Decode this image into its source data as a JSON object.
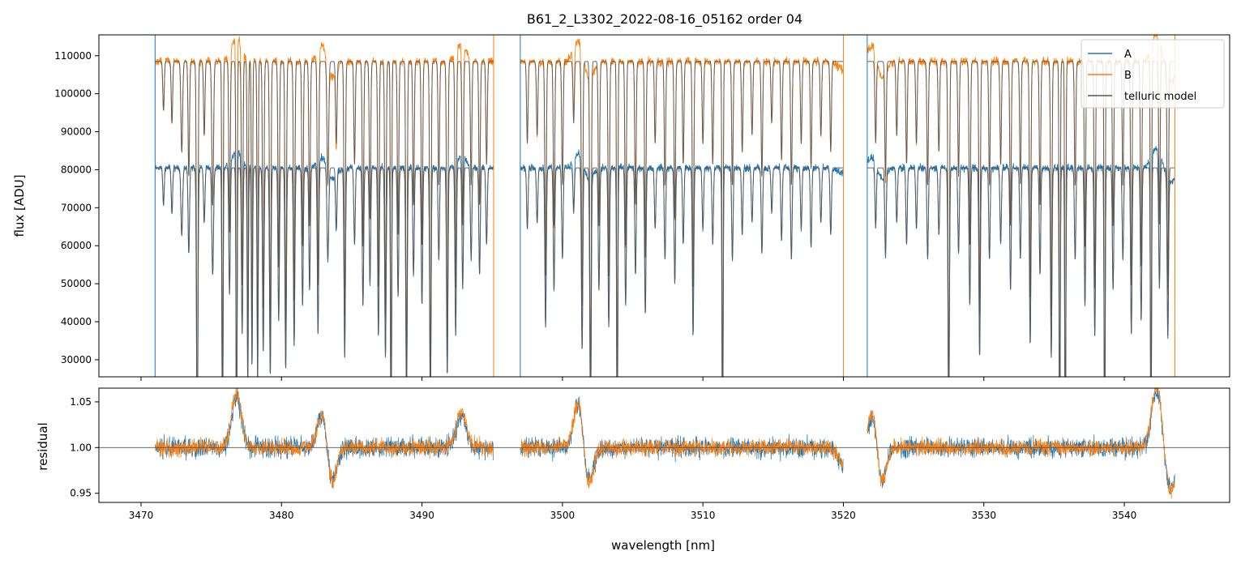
{
  "chart_data": [
    {
      "type": "line",
      "title": "B61_2_L3302_2022-08-16_05162  order 04",
      "xlabel": "",
      "ylabel": "flux [ADU]",
      "xlim": [
        3467,
        3547.5
      ],
      "ylim": [
        25500,
        115500
      ],
      "yticks": [
        30000,
        40000,
        50000,
        60000,
        70000,
        80000,
        90000,
        100000,
        110000
      ],
      "ytick_labels": [
        "30000",
        "40000",
        "50000",
        "60000",
        "70000",
        "80000",
        "90000",
        "100000",
        "110000"
      ],
      "legend_position": "top-right",
      "legend": [
        {
          "label": "A",
          "color": "#1f77b4"
        },
        {
          "label": "B",
          "color": "#ff7f0e"
        },
        {
          "label": "telluric model",
          "color": "#555555"
        }
      ],
      "segments": [
        [
          3471.0,
          3495.1
        ],
        [
          3497.0,
          3520.0
        ],
        [
          3521.7,
          3543.6
        ]
      ],
      "series": [
        {
          "name": "A",
          "color": "#1f77b4",
          "continuum": 80500
        },
        {
          "name": "B",
          "color": "#ff7f0e",
          "continuum": 108500
        },
        {
          "name": "telluric model",
          "color": "#555555"
        }
      ],
      "absorption_lines": [
        [
          3471.6,
          0.12,
          0.05
        ],
        [
          3472.2,
          0.15,
          0.05
        ],
        [
          3472.9,
          0.22,
          0.06
        ],
        [
          3473.4,
          0.28,
          0.05
        ],
        [
          3474.0,
          0.96,
          0.05
        ],
        [
          3474.5,
          0.18,
          0.05
        ],
        [
          3475.1,
          0.35,
          0.06
        ],
        [
          3475.8,
          0.97,
          0.04
        ],
        [
          3476.3,
          0.42,
          0.05
        ],
        [
          3476.8,
          0.98,
          0.04
        ],
        [
          3477.2,
          0.55,
          0.05
        ],
        [
          3477.6,
          0.72,
          0.04
        ],
        [
          3477.9,
          0.65,
          0.04
        ],
        [
          3478.3,
          0.7,
          0.04
        ],
        [
          3478.7,
          0.6,
          0.05
        ],
        [
          3479.2,
          0.68,
          0.05
        ],
        [
          3479.8,
          0.5,
          0.05
        ],
        [
          3480.3,
          0.66,
          0.05
        ],
        [
          3480.9,
          0.58,
          0.05
        ],
        [
          3481.5,
          0.45,
          0.05
        ],
        [
          3482.0,
          0.4,
          0.05
        ],
        [
          3482.6,
          0.55,
          0.05
        ],
        [
          3483.3,
          0.3,
          0.06
        ],
        [
          3483.9,
          0.2,
          0.05
        ],
        [
          3484.5,
          0.62,
          0.05
        ],
        [
          3485.2,
          0.25,
          0.05
        ],
        [
          3485.8,
          0.45,
          0.05
        ],
        [
          3486.3,
          0.38,
          0.05
        ],
        [
          3486.9,
          0.55,
          0.05
        ],
        [
          3487.4,
          0.62,
          0.05
        ],
        [
          3487.8,
          0.97,
          0.04
        ],
        [
          3488.3,
          0.42,
          0.05
        ],
        [
          3488.9,
          0.78,
          0.05
        ],
        [
          3489.4,
          0.35,
          0.05
        ],
        [
          3490.0,
          0.45,
          0.05
        ],
        [
          3490.6,
          0.8,
          0.05
        ],
        [
          3491.2,
          0.3,
          0.05
        ],
        [
          3491.8,
          0.68,
          0.05
        ],
        [
          3492.4,
          0.55,
          0.05
        ],
        [
          3492.9,
          0.4,
          0.05
        ],
        [
          3493.5,
          0.3,
          0.05
        ],
        [
          3494.1,
          0.35,
          0.05
        ],
        [
          3494.6,
          0.25,
          0.05
        ],
        [
          3497.5,
          0.2,
          0.05
        ],
        [
          3498.2,
          0.18,
          0.05
        ],
        [
          3498.8,
          0.52,
          0.05
        ],
        [
          3499.4,
          0.4,
          0.05
        ],
        [
          3500.0,
          0.3,
          0.05
        ],
        [
          3500.8,
          0.15,
          0.05
        ],
        [
          3501.4,
          0.6,
          0.05
        ],
        [
          3502.0,
          0.85,
          0.05
        ],
        [
          3502.6,
          0.4,
          0.05
        ],
        [
          3503.3,
          0.52,
          0.05
        ],
        [
          3503.9,
          0.98,
          0.04
        ],
        [
          3504.5,
          0.45,
          0.05
        ],
        [
          3505.2,
          0.35,
          0.05
        ],
        [
          3505.9,
          0.48,
          0.05
        ],
        [
          3506.6,
          0.2,
          0.05
        ],
        [
          3507.3,
          0.3,
          0.05
        ],
        [
          3508.0,
          0.38,
          0.05
        ],
        [
          3508.6,
          0.25,
          0.05
        ],
        [
          3509.3,
          0.55,
          0.05
        ],
        [
          3510.0,
          0.2,
          0.05
        ],
        [
          3510.7,
          0.25,
          0.05
        ],
        [
          3511.4,
          0.98,
          0.04
        ],
        [
          3512.1,
          0.3,
          0.05
        ],
        [
          3512.8,
          0.22,
          0.05
        ],
        [
          3513.5,
          0.18,
          0.05
        ],
        [
          3514.2,
          0.28,
          0.05
        ],
        [
          3514.9,
          0.15,
          0.05
        ],
        [
          3515.6,
          0.24,
          0.05
        ],
        [
          3516.3,
          0.3,
          0.05
        ],
        [
          3517.0,
          0.2,
          0.05
        ],
        [
          3517.7,
          0.26,
          0.05
        ],
        [
          3518.4,
          0.18,
          0.05
        ],
        [
          3519.1,
          0.22,
          0.05
        ],
        [
          3522.3,
          0.2,
          0.05
        ],
        [
          3523.0,
          0.28,
          0.05
        ],
        [
          3523.8,
          0.18,
          0.05
        ],
        [
          3524.5,
          0.25,
          0.05
        ],
        [
          3525.2,
          0.2,
          0.05
        ],
        [
          3526.0,
          0.3,
          0.05
        ],
        [
          3526.8,
          0.22,
          0.05
        ],
        [
          3527.5,
          0.85,
          0.05
        ],
        [
          3528.2,
          0.28,
          0.05
        ],
        [
          3529.0,
          0.45,
          0.05
        ],
        [
          3529.7,
          0.62,
          0.05
        ],
        [
          3530.4,
          0.3,
          0.05
        ],
        [
          3531.2,
          0.25,
          0.05
        ],
        [
          3531.9,
          0.4,
          0.05
        ],
        [
          3532.6,
          0.3,
          0.05
        ],
        [
          3533.3,
          0.58,
          0.05
        ],
        [
          3534.0,
          0.35,
          0.05
        ],
        [
          3534.8,
          0.62,
          0.05
        ],
        [
          3535.4,
          0.97,
          0.04
        ],
        [
          3535.8,
          0.97,
          0.04
        ],
        [
          3536.5,
          0.3,
          0.05
        ],
        [
          3537.2,
          0.45,
          0.05
        ],
        [
          3537.9,
          0.55,
          0.05
        ],
        [
          3538.6,
          0.97,
          0.04
        ],
        [
          3539.2,
          0.4,
          0.05
        ],
        [
          3539.9,
          0.3,
          0.05
        ],
        [
          3540.5,
          0.55,
          0.05
        ],
        [
          3541.2,
          0.5,
          0.05
        ],
        [
          3541.9,
          0.97,
          0.04
        ],
        [
          3542.5,
          0.4,
          0.05
        ],
        [
          3543.1,
          0.55,
          0.05
        ]
      ]
    },
    {
      "type": "line",
      "title": "",
      "xlabel": "wavelength [nm]",
      "ylabel": "residual",
      "xlim": [
        3467,
        3547.5
      ],
      "ylim": [
        0.94,
        1.065
      ],
      "yticks": [
        0.95,
        1.0,
        1.05
      ],
      "ytick_labels": [
        "0.95",
        "1.00",
        "1.05"
      ],
      "xticks": [
        3470,
        3480,
        3490,
        3500,
        3510,
        3520,
        3530,
        3540
      ],
      "xtick_labels": [
        "3470",
        "3480",
        "3490",
        "3500",
        "3510",
        "3520",
        "3530",
        "3540"
      ],
      "reference_line": 1.0,
      "series": [
        {
          "name": "A",
          "color": "#1f77b4"
        },
        {
          "name": "B",
          "color": "#ff7f0e"
        }
      ],
      "residual_features": [
        [
          3476.8,
          0.06
        ],
        [
          3483.0,
          0.05
        ],
        [
          3483.5,
          -0.05
        ],
        [
          3492.8,
          0.04
        ],
        [
          3501.2,
          0.06
        ],
        [
          3501.8,
          -0.05
        ],
        [
          3520.0,
          -0.02
        ],
        [
          3522.2,
          0.06
        ],
        [
          3522.6,
          -0.06
        ],
        [
          3542.3,
          0.07
        ],
        [
          3543.3,
          -0.05
        ]
      ]
    }
  ]
}
